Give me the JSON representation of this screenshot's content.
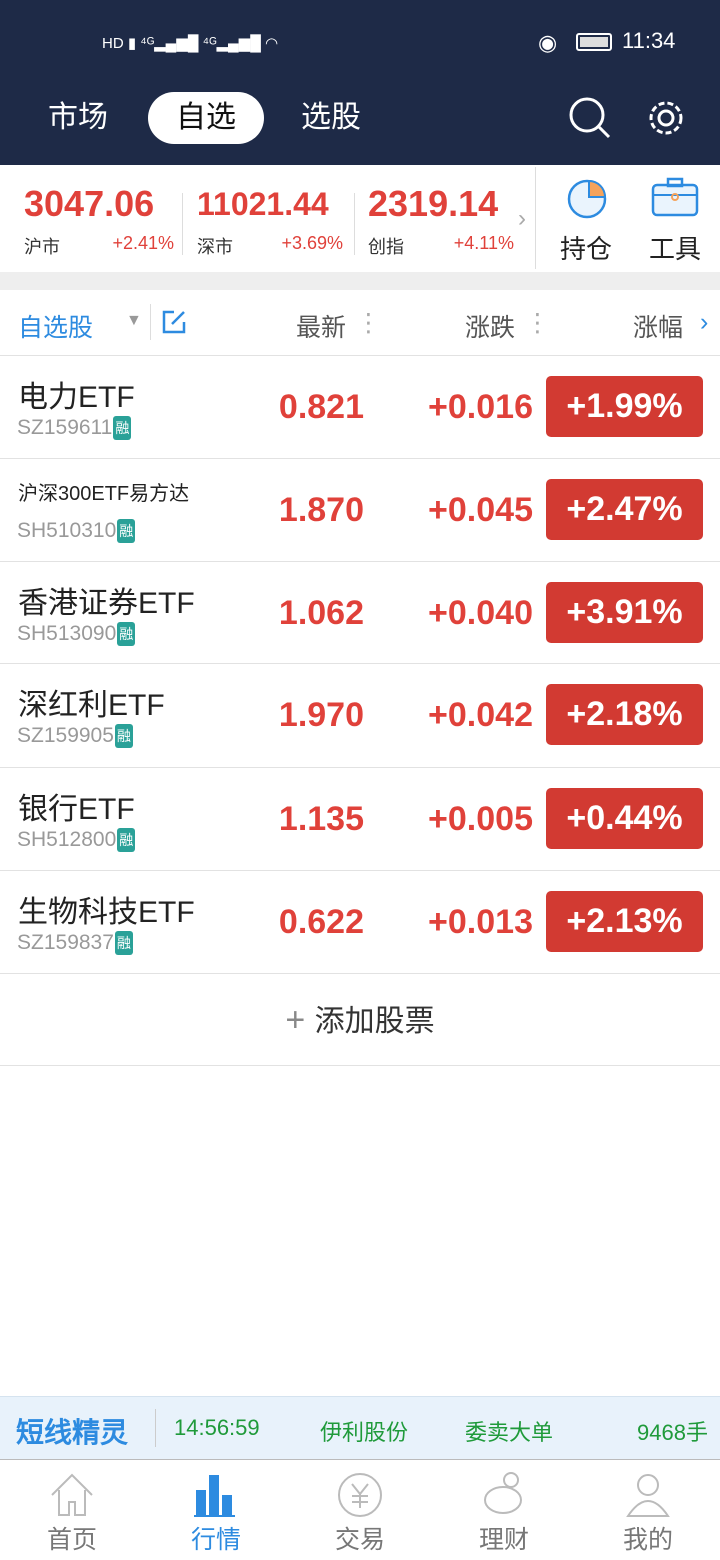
{
  "status_bar": {
    "time": "11:34",
    "network": "4G"
  },
  "nav": {
    "tabs": [
      {
        "label": "市场"
      },
      {
        "label": "自选",
        "active": true
      },
      {
        "label": "选股"
      }
    ]
  },
  "indices": [
    {
      "value": "3047.06",
      "name": "沪市",
      "change": "+2.41%"
    },
    {
      "value": "11021.44",
      "name": "深市",
      "change": "+3.69%"
    },
    {
      "value": "2319.14",
      "name": "创指",
      "change": "+4.11%"
    }
  ],
  "shortcuts": {
    "holdings": "持仓",
    "tools": "工具"
  },
  "list_header": {
    "group": "自选股",
    "latest": "最新",
    "change": "涨跌",
    "pct": "涨幅"
  },
  "stocks": [
    {
      "name": "电力ETF",
      "code": "SZ159611",
      "tag": "融",
      "price": "0.821",
      "change": "+0.016",
      "pct": "+1.99%"
    },
    {
      "name": "沪深300ETF易方达",
      "code": "SH510310",
      "tag": "融",
      "price": "1.870",
      "change": "+0.045",
      "pct": "+2.47%"
    },
    {
      "name": "香港证券ETF",
      "code": "SH513090",
      "tag": "融",
      "price": "1.062",
      "change": "+0.040",
      "pct": "+3.91%"
    },
    {
      "name": "深红利ETF",
      "code": "SZ159905",
      "tag": "融",
      "price": "1.970",
      "change": "+0.042",
      "pct": "+2.18%"
    },
    {
      "name": "银行ETF",
      "code": "SH512800",
      "tag": "融",
      "price": "1.135",
      "change": "+0.005",
      "pct": "+0.44%"
    },
    {
      "name": "生物科技ETF",
      "code": "SZ159837",
      "tag": "融",
      "price": "0.622",
      "change": "+0.013",
      "pct": "+2.13%"
    }
  ],
  "add_stock": "添加股票",
  "ticker": {
    "brand": "短线精灵",
    "time": "14:56:59",
    "stock": "伊利股份",
    "event": "委卖大单",
    "volume": "9468手"
  },
  "colors": {
    "header": "#1e2a47",
    "up": "#e0413a",
    "accent": "#2d8be0",
    "ticker_text": "#1f9a3a"
  },
  "tabbar": [
    {
      "label": "首页",
      "icon": "home-icon"
    },
    {
      "label": "行情",
      "icon": "bar-chart-icon",
      "active": true
    },
    {
      "label": "交易",
      "icon": "yen-icon"
    },
    {
      "label": "理财",
      "icon": "piggy-bank-icon"
    },
    {
      "label": "我的",
      "icon": "user-icon"
    }
  ]
}
